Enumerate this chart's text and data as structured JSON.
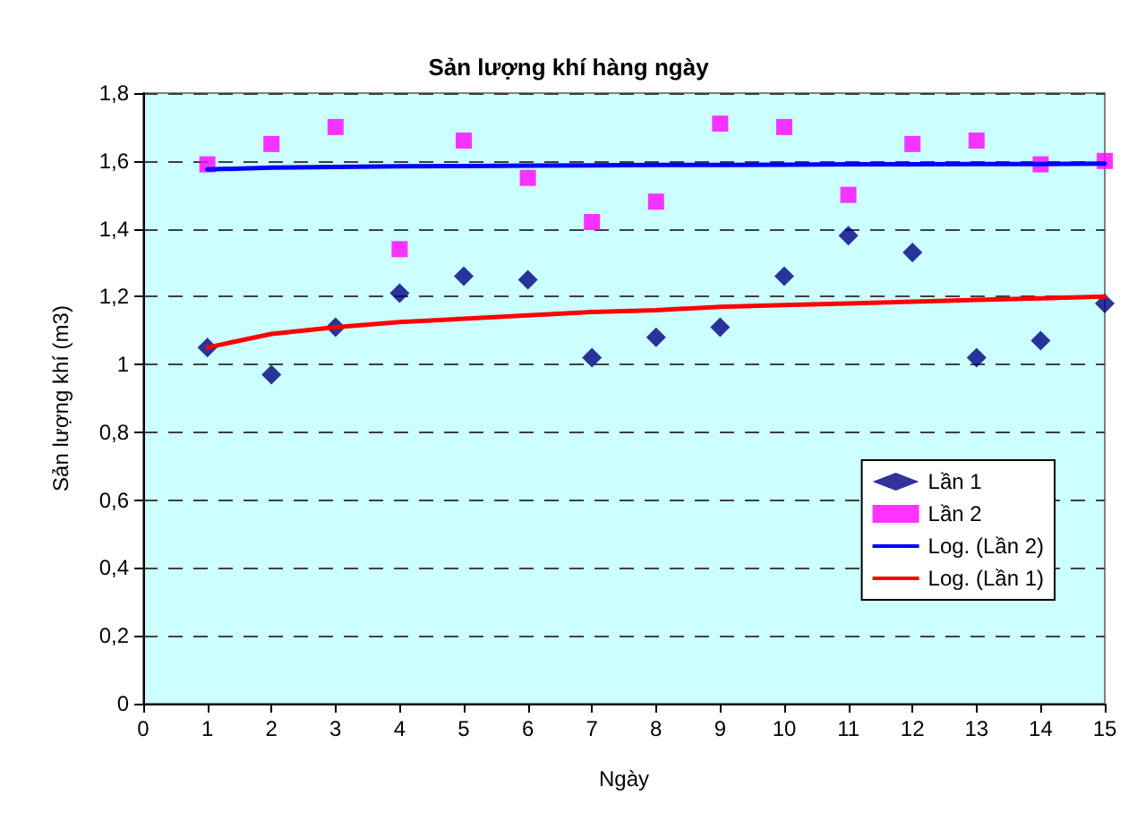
{
  "chart_data": {
    "type": "scatter",
    "title": "Sản lượng khí hàng ngày",
    "xlabel": "Ngày",
    "ylabel": "Sản lượng khí (m3)",
    "x": [
      1,
      2,
      3,
      4,
      5,
      6,
      7,
      8,
      9,
      10,
      11,
      12,
      13,
      14,
      15
    ],
    "series": [
      {
        "name": "Lần 1",
        "marker": "diamond",
        "color": "#000080",
        "values": [
          1.05,
          0.97,
          1.11,
          1.21,
          1.26,
          1.25,
          1.02,
          1.08,
          1.11,
          1.26,
          1.38,
          1.33,
          1.02,
          1.07,
          1.18
        ]
      },
      {
        "name": "Lần 2",
        "marker": "square",
        "color": "#ff00ff",
        "values": [
          1.59,
          1.65,
          1.7,
          1.34,
          1.66,
          1.55,
          1.42,
          1.48,
          1.71,
          1.7,
          1.5,
          1.65,
          1.66,
          1.59,
          1.6
        ]
      },
      {
        "name": "Log. (Lần 2)",
        "type": "line",
        "marker": "none",
        "color": "#0000ff",
        "values": [
          1.575,
          1.58,
          1.582,
          1.584,
          1.585,
          1.586,
          1.587,
          1.588,
          1.588,
          1.589,
          1.59,
          1.59,
          1.591,
          1.591,
          1.592
        ]
      },
      {
        "name": "Log. (Lần 1)",
        "type": "line",
        "marker": "none",
        "color": "#ff0000",
        "values": [
          1.05,
          1.09,
          1.11,
          1.125,
          1.135,
          1.145,
          1.155,
          1.16,
          1.17,
          1.175,
          1.18,
          1.185,
          1.19,
          1.195,
          1.2
        ]
      }
    ],
    "xlim": [
      0,
      15
    ],
    "xticks": [
      0,
      1,
      2,
      3,
      4,
      5,
      6,
      7,
      8,
      9,
      10,
      11,
      12,
      13,
      14,
      15
    ],
    "ylim": [
      0,
      1.8
    ],
    "yticks": [
      0,
      {
        "value": 0.2,
        "label": "0,2"
      },
      {
        "value": 0.4,
        "label": "0,4"
      },
      {
        "value": 0.6,
        "label": "0,6"
      },
      {
        "value": 0.8,
        "label": "0,8"
      },
      1,
      {
        "value": 1.2,
        "label": "1,2"
      },
      {
        "value": 1.4,
        "label": "1,4"
      },
      {
        "value": 1.6,
        "label": "1,6"
      },
      {
        "value": 1.8,
        "label": "1,8"
      }
    ],
    "grid": "y",
    "legend": "bottom right",
    "line_style": "solid"
  }
}
